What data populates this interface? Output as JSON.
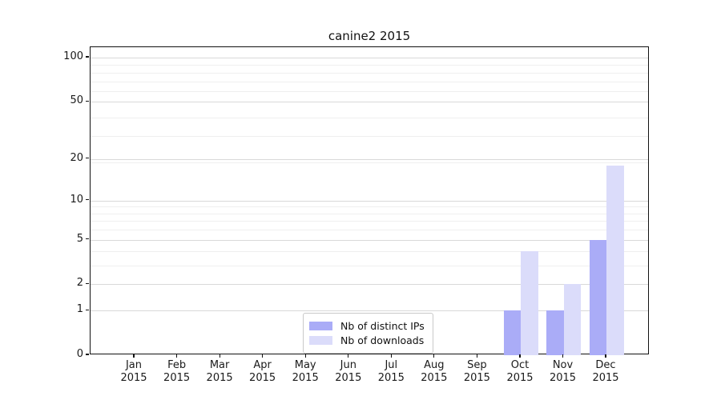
{
  "figure": {
    "title": "canine2 2015"
  },
  "chart_data": {
    "type": "bar",
    "title": "canine2 2015",
    "categories": [
      "Jan",
      "Feb",
      "Mar",
      "Apr",
      "May",
      "Jun",
      "Jul",
      "Aug",
      "Sep",
      "Oct",
      "Nov",
      "Dec"
    ],
    "category_year": "2015",
    "series": [
      {
        "name": "Nb of distinct IPs",
        "color": "#aaacf7",
        "values": [
          0,
          0,
          0,
          0,
          0,
          0,
          0,
          0,
          0,
          1,
          1,
          5
        ]
      },
      {
        "name": "Nb of downloads",
        "color": "#dbdcfa",
        "values": [
          0,
          0,
          0,
          0,
          0,
          0,
          0,
          0,
          0,
          4,
          2,
          18
        ]
      }
    ],
    "xlabel": "",
    "ylabel": "",
    "y_scale": "log(value+1)",
    "y_ticks": [
      0,
      1,
      2,
      5,
      10,
      20,
      50,
      100
    ],
    "y_minor_gridlines": [
      3,
      4,
      6,
      7,
      8,
      9,
      19,
      29,
      39,
      59,
      69,
      79,
      89
    ],
    "ylim": [
      0,
      118
    ],
    "grid": "horizontal",
    "legend_position": "inside-lower-center",
    "colors": {
      "major_grid": "#d9d9d9",
      "minor_grid": "#efefef",
      "spine": "#111111",
      "text": "#1a1a1a",
      "background": "#ffffff"
    }
  }
}
